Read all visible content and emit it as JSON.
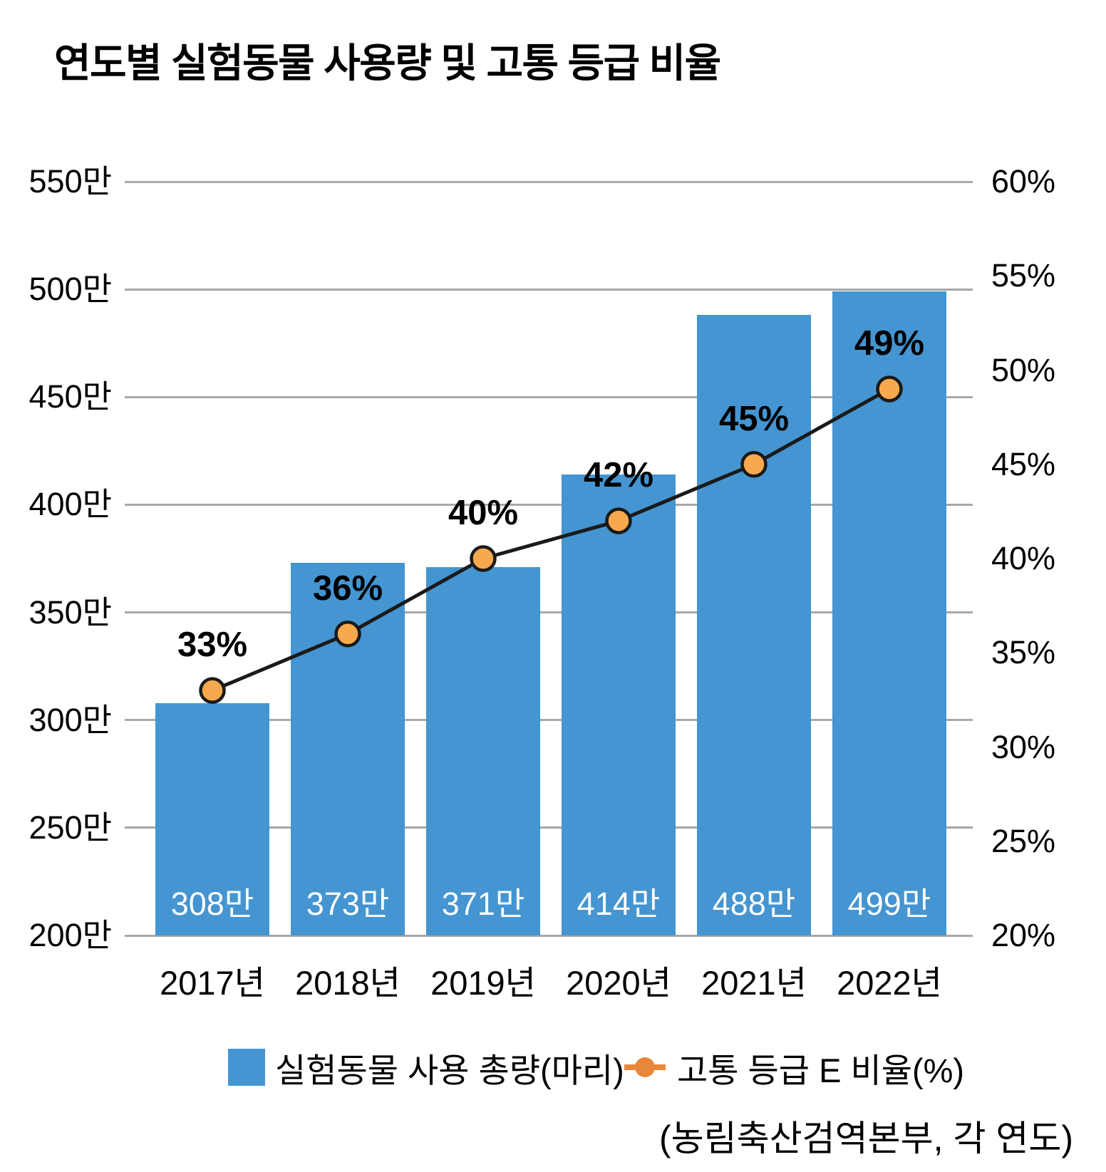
{
  "title": "연도별 실험동물 사용량 및 고통 등급 비율",
  "source": "(농림축산검역본부, 각 연도)",
  "legend": [
    {
      "label": "실험동물 사용 총량(마리)",
      "type": "bar",
      "color": "#4495D1"
    },
    {
      "label": "고통 등급 E 비율(%)",
      "type": "line",
      "color": "#E8873A"
    }
  ],
  "chart_data": {
    "type": "bar+line",
    "title": "연도별 실험동물 사용량 및 고통 등급 비율",
    "categories": [
      "2017년",
      "2018년",
      "2019년",
      "2020년",
      "2021년",
      "2022년"
    ],
    "series": [
      {
        "name": "실험동물 사용 총량(마리)",
        "type": "bar",
        "axis": "left",
        "values": [
          308,
          373,
          371,
          414,
          488,
          499
        ],
        "value_labels": [
          "308만",
          "373만",
          "371만",
          "414만",
          "488만",
          "499만"
        ],
        "color": "#4495D1",
        "value_label_color": "#FFFFFF"
      },
      {
        "name": "고통 등급 E 비율(%)",
        "type": "line",
        "axis": "right",
        "values": [
          33,
          36,
          40,
          42,
          45,
          49
        ],
        "value_labels": [
          "33%",
          "36%",
          "40%",
          "42%",
          "45%",
          "49%"
        ],
        "line_color": "#1a1a1a",
        "marker_fill": "#F9A94D",
        "marker_stroke": "#1a1a1a"
      }
    ],
    "left_axis": {
      "min": 200,
      "max": 550,
      "step": 50,
      "unit": "만",
      "ticks": [
        "550만",
        "500만",
        "450만",
        "400만",
        "350만",
        "300만",
        "250만",
        "200만"
      ]
    },
    "right_axis": {
      "min": 20,
      "max": 60,
      "step": 5,
      "unit": "%",
      "ticks": [
        "60%",
        "55%",
        "50%",
        "45%",
        "40%",
        "35%",
        "30%",
        "25%",
        "20%"
      ]
    },
    "grid": true,
    "gridline_color": "#A8A8A8",
    "legend_position": "bottom"
  }
}
